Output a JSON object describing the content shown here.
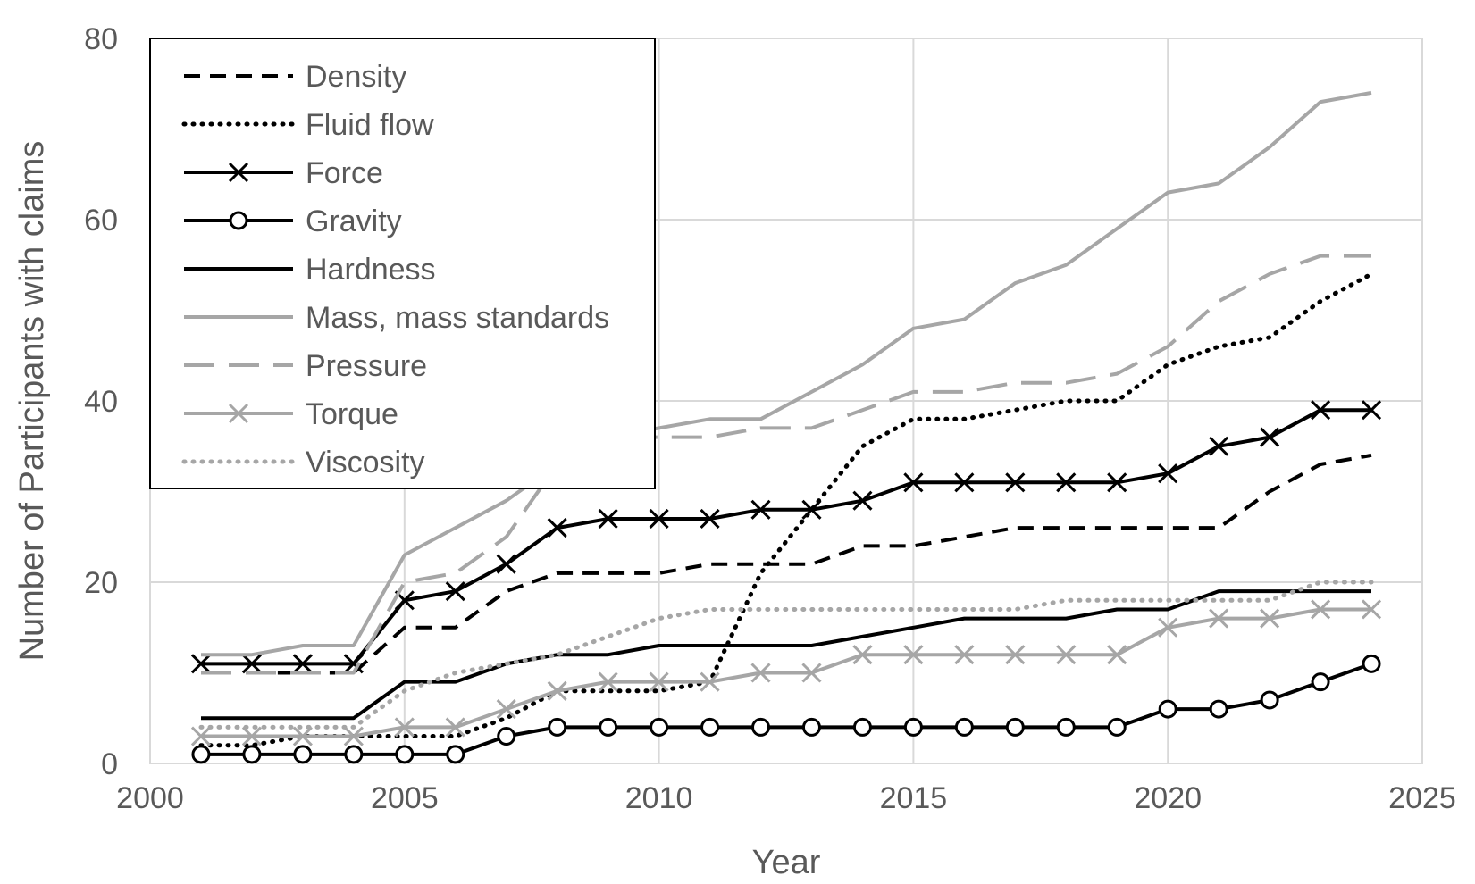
{
  "chart_data": {
    "type": "line",
    "xlabel": "Year",
    "ylabel": "Number of Participants with claims",
    "xlim": [
      2000,
      2025
    ],
    "ylim": [
      0,
      80
    ],
    "xticks": [
      2000,
      2005,
      2010,
      2015,
      2020,
      2025
    ],
    "yticks": [
      0,
      20,
      40,
      60,
      80
    ],
    "grid": true,
    "legend_position": "top-left",
    "x": [
      2001,
      2002,
      2003,
      2004,
      2005,
      2006,
      2007,
      2008,
      2009,
      2010,
      2011,
      2012,
      2013,
      2014,
      2015,
      2016,
      2017,
      2018,
      2019,
      2020,
      2021,
      2022,
      2023,
      2024
    ],
    "series": [
      {
        "name": "Density",
        "color": "#000000",
        "style": "dashed",
        "marker": "none",
        "values": [
          null,
          10,
          10,
          10,
          15,
          15,
          19,
          21,
          21,
          21,
          22,
          22,
          22,
          24,
          24,
          25,
          26,
          26,
          26,
          26,
          26,
          30,
          33,
          34
        ]
      },
      {
        "name": "Fluid flow",
        "color": "#000000",
        "style": "dotted",
        "marker": "none",
        "values": [
          2,
          2,
          3,
          3,
          3,
          3,
          5,
          8,
          8,
          8,
          9,
          21,
          28,
          35,
          38,
          38,
          39,
          40,
          40,
          44,
          46,
          47,
          51,
          54
        ]
      },
      {
        "name": "Force",
        "color": "#000000",
        "style": "solid",
        "marker": "x",
        "values": [
          11,
          11,
          11,
          11,
          18,
          19,
          22,
          26,
          27,
          27,
          27,
          28,
          28,
          29,
          31,
          31,
          31,
          31,
          31,
          32,
          35,
          36,
          39,
          39
        ]
      },
      {
        "name": "Gravity",
        "color": "#000000",
        "style": "solid",
        "marker": "circle",
        "values": [
          1,
          1,
          1,
          1,
          1,
          1,
          3,
          4,
          4,
          4,
          4,
          4,
          4,
          4,
          4,
          4,
          4,
          4,
          4,
          6,
          6,
          7,
          9,
          11
        ]
      },
      {
        "name": "Hardness",
        "color": "#000000",
        "style": "solid",
        "marker": "none",
        "values": [
          5,
          5,
          5,
          5,
          9,
          9,
          11,
          12,
          12,
          13,
          13,
          13,
          13,
          14,
          15,
          16,
          16,
          16,
          17,
          17,
          19,
          19,
          19,
          19
        ]
      },
      {
        "name": "Mass, mass standards",
        "color": "#a6a6a6",
        "style": "solid",
        "marker": "none",
        "values": [
          12,
          12,
          13,
          13,
          23,
          26,
          29,
          33,
          36,
          37,
          38,
          38,
          41,
          44,
          48,
          49,
          53,
          55,
          59,
          63,
          64,
          68,
          73,
          74
        ]
      },
      {
        "name": "Pressure",
        "color": "#a6a6a6",
        "style": "longdash",
        "marker": "none",
        "values": [
          10,
          10,
          10,
          10,
          20,
          21,
          25,
          33,
          36,
          36,
          36,
          37,
          37,
          39,
          41,
          41,
          42,
          42,
          43,
          46,
          51,
          54,
          56,
          56
        ]
      },
      {
        "name": "Torque",
        "color": "#a6a6a6",
        "style": "solid",
        "marker": "x",
        "values": [
          3,
          3,
          3,
          3,
          4,
          4,
          6,
          8,
          9,
          9,
          9,
          10,
          10,
          12,
          12,
          12,
          12,
          12,
          12,
          15,
          16,
          16,
          17,
          17
        ]
      },
      {
        "name": "Viscosity",
        "color": "#a6a6a6",
        "style": "dotted",
        "marker": "none",
        "values": [
          4,
          4,
          4,
          4,
          8,
          10,
          11,
          12,
          14,
          16,
          17,
          17,
          17,
          17,
          17,
          17,
          17,
          18,
          18,
          18,
          18,
          18,
          20,
          20
        ]
      }
    ]
  }
}
